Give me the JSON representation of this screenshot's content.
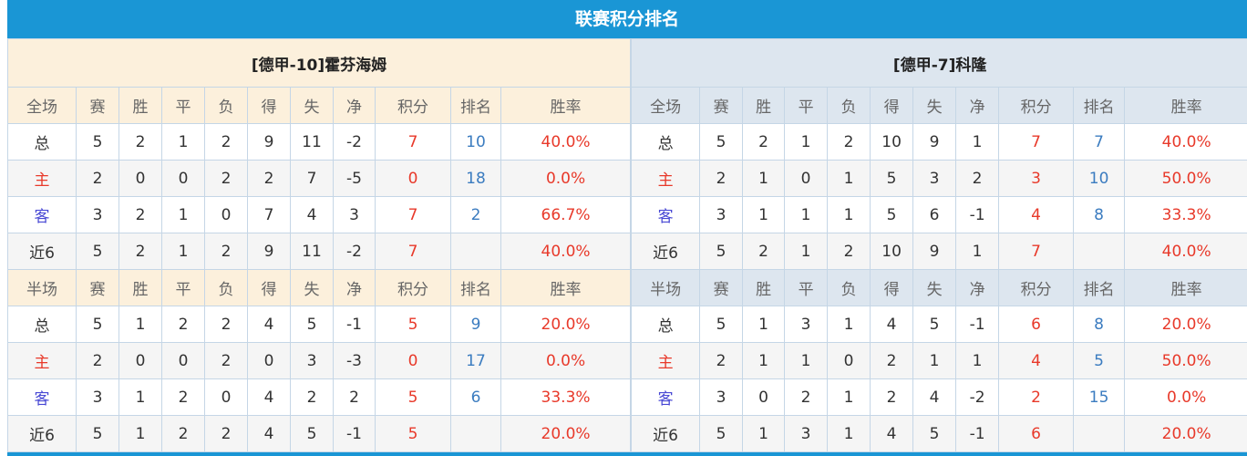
{
  "title": "联赛积分排名",
  "colors": {
    "title_bar": "#1a96d5",
    "points": "#e8392a",
    "rank": "#3b7cc0",
    "home": "#e8392a",
    "away": "#4848d4"
  },
  "teams": [
    {
      "name": "[德甲-10]霍芬海姆",
      "full": {
        "header": [
          "全场",
          "赛",
          "胜",
          "平",
          "负",
          "得",
          "失",
          "净",
          "积分",
          "排名",
          "胜率"
        ],
        "rows": [
          [
            "总",
            "5",
            "2",
            "1",
            "2",
            "9",
            "11",
            "-2",
            "7",
            "10",
            "40.0%"
          ],
          [
            "主",
            "2",
            "0",
            "0",
            "2",
            "2",
            "7",
            "-5",
            "0",
            "18",
            "0.0%"
          ],
          [
            "客",
            "3",
            "2",
            "1",
            "0",
            "7",
            "4",
            "3",
            "7",
            "2",
            "66.7%"
          ],
          [
            "近6",
            "5",
            "2",
            "1",
            "2",
            "9",
            "11",
            "-2",
            "7",
            "",
            "40.0%"
          ]
        ]
      },
      "half": {
        "header": [
          "半场",
          "赛",
          "胜",
          "平",
          "负",
          "得",
          "失",
          "净",
          "积分",
          "排名",
          "胜率"
        ],
        "rows": [
          [
            "总",
            "5",
            "1",
            "2",
            "2",
            "4",
            "5",
            "-1",
            "5",
            "9",
            "20.0%"
          ],
          [
            "主",
            "2",
            "0",
            "0",
            "2",
            "0",
            "3",
            "-3",
            "0",
            "17",
            "0.0%"
          ],
          [
            "客",
            "3",
            "1",
            "2",
            "0",
            "4",
            "2",
            "2",
            "5",
            "6",
            "33.3%"
          ],
          [
            "近6",
            "5",
            "1",
            "2",
            "2",
            "4",
            "5",
            "-1",
            "5",
            "",
            "20.0%"
          ]
        ]
      }
    },
    {
      "name": "[德甲-7]科隆",
      "full": {
        "header": [
          "全场",
          "赛",
          "胜",
          "平",
          "负",
          "得",
          "失",
          "净",
          "积分",
          "排名",
          "胜率"
        ],
        "rows": [
          [
            "总",
            "5",
            "2",
            "1",
            "2",
            "10",
            "9",
            "1",
            "7",
            "7",
            "40.0%"
          ],
          [
            "主",
            "2",
            "1",
            "0",
            "1",
            "5",
            "3",
            "2",
            "3",
            "10",
            "50.0%"
          ],
          [
            "客",
            "3",
            "1",
            "1",
            "1",
            "5",
            "6",
            "-1",
            "4",
            "8",
            "33.3%"
          ],
          [
            "近6",
            "5",
            "2",
            "1",
            "2",
            "10",
            "9",
            "1",
            "7",
            "",
            "40.0%"
          ]
        ]
      },
      "half": {
        "header": [
          "半场",
          "赛",
          "胜",
          "平",
          "负",
          "得",
          "失",
          "净",
          "积分",
          "排名",
          "胜率"
        ],
        "rows": [
          [
            "总",
            "5",
            "1",
            "3",
            "1",
            "4",
            "5",
            "-1",
            "6",
            "8",
            "20.0%"
          ],
          [
            "主",
            "2",
            "1",
            "1",
            "0",
            "2",
            "1",
            "1",
            "4",
            "5",
            "50.0%"
          ],
          [
            "客",
            "3",
            "0",
            "2",
            "1",
            "2",
            "4",
            "-2",
            "2",
            "15",
            "0.0%"
          ],
          [
            "近6",
            "5",
            "1",
            "3",
            "1",
            "4",
            "5",
            "-1",
            "6",
            "",
            "20.0%"
          ]
        ]
      }
    }
  ]
}
